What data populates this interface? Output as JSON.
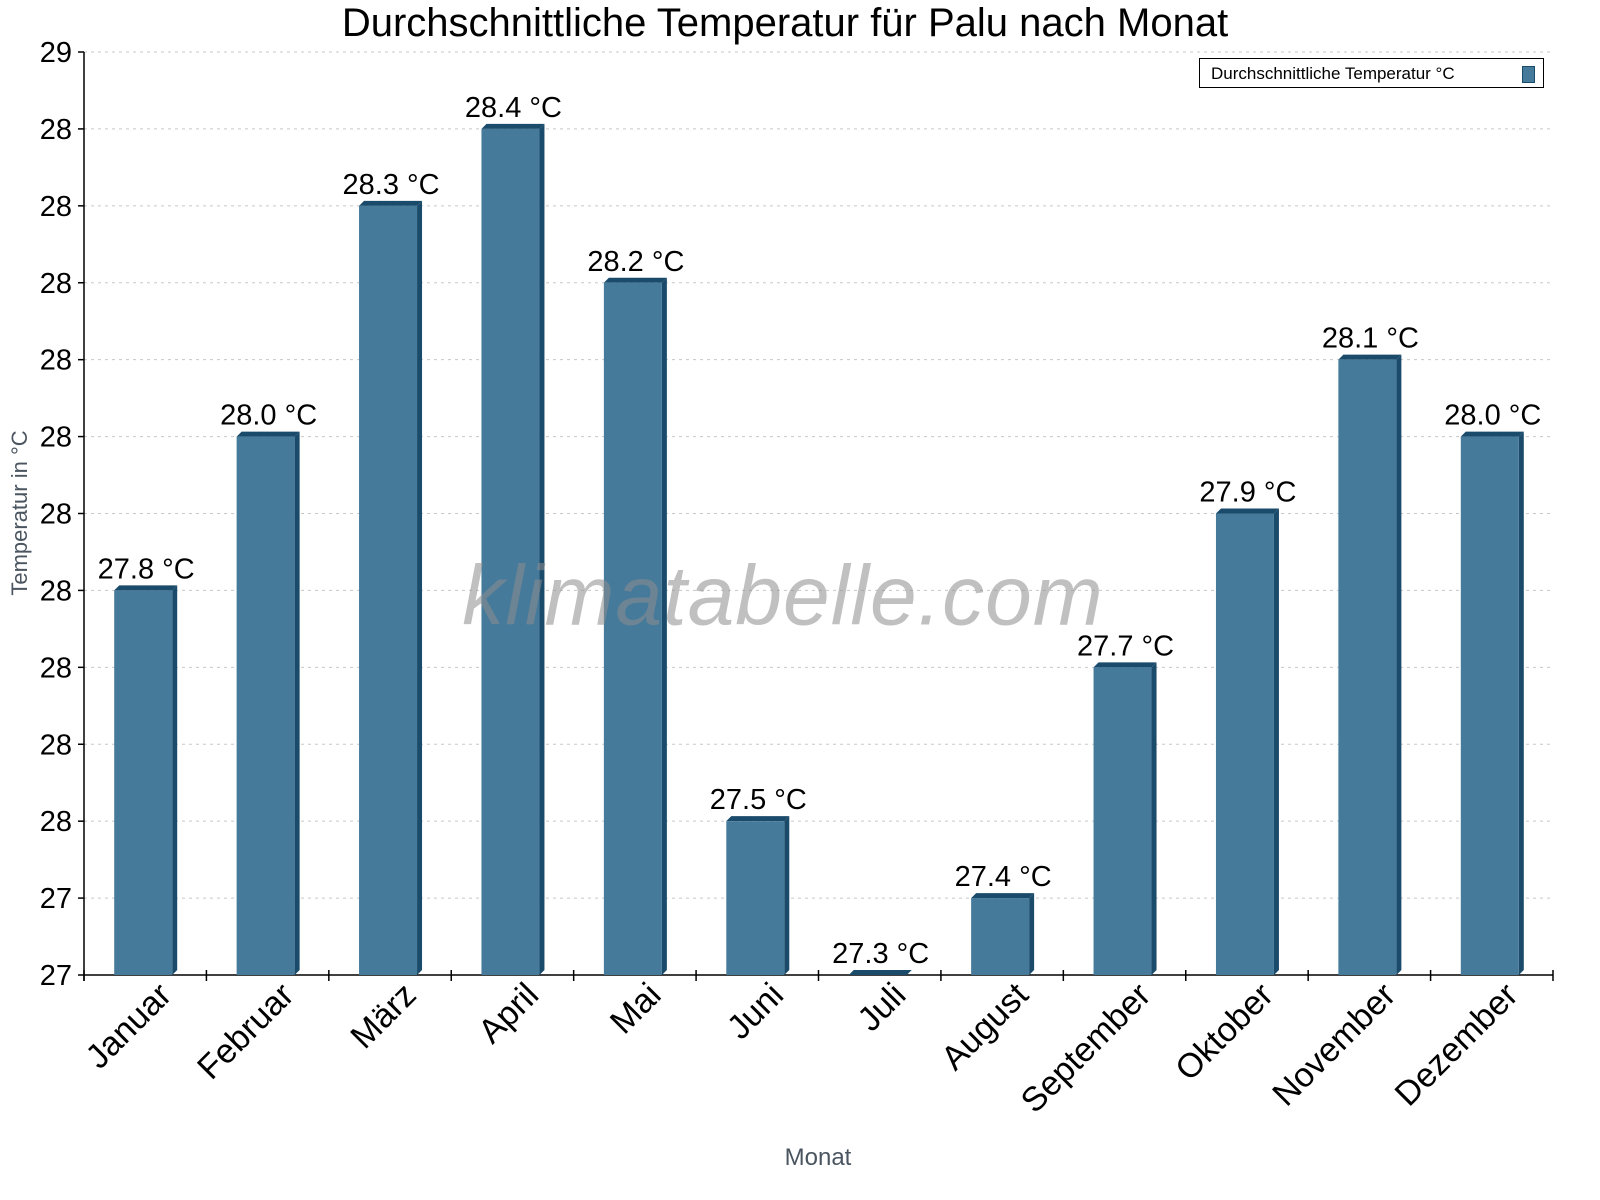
{
  "chart_data": {
    "type": "bar",
    "title": "Durchschnittliche Temperatur für Palu nach Monat",
    "xlabel": "Monat",
    "ylabel": "Temperatur in °C",
    "categories": [
      "Januar",
      "Februar",
      "März",
      "April",
      "Mai",
      "Juni",
      "Juli",
      "August",
      "September",
      "Oktober",
      "November",
      "Dezember"
    ],
    "series": [
      {
        "name": "Durchschnittliche Temperatur °C",
        "values": [
          27.8,
          28.0,
          28.3,
          28.4,
          28.2,
          27.5,
          27.3,
          27.4,
          27.7,
          27.9,
          28.1,
          28.0
        ],
        "labels": [
          "27.8 °C",
          "28.0 °C",
          "28.3 °C",
          "28.4 °C",
          "28.2 °C",
          "27.5 °C",
          "27.3 °C",
          "27.4 °C",
          "27.7 °C",
          "27.9 °C",
          "28.1 °C",
          "28.0 °C"
        ],
        "color": "#457a9b",
        "side_color": "#1b4b6a"
      }
    ],
    "y_ticks": [
      "29",
      "28",
      "28",
      "28",
      "28",
      "28",
      "28",
      "28",
      "28",
      "28",
      "28",
      "27",
      "27"
    ],
    "ylim": [
      27.3,
      28.5
    ],
    "grid": true,
    "grid_style": "dotted",
    "legend_position": "top-right",
    "watermark": "klimatabelle.com"
  }
}
